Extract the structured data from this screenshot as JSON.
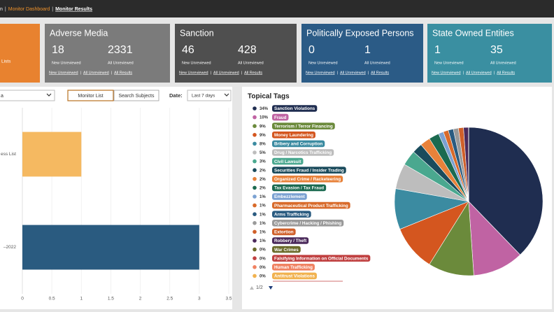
{
  "nav": {
    "items": [
      "n",
      "Monitor Dashboard",
      "Monitor Results"
    ],
    "separator": "|"
  },
  "partial_card": {
    "text": "Lists",
    "color": "#e8822f"
  },
  "link_separator": "|",
  "cards": [
    {
      "title": "Adverse Media",
      "new": 18,
      "all": 2331,
      "new_label": "New Unreviewed",
      "all_label": "All Unreviewed",
      "links": [
        "New Unreviewed",
        "All Unreviewed",
        "All Results"
      ],
      "color": "#7b7b7b"
    },
    {
      "title": "Sanction",
      "new": 46,
      "all": 428,
      "new_label": "New Unreviewed",
      "all_label": "All Unreviewed",
      "links": [
        "New Unreviewed",
        "All Unreviewed",
        "All Results"
      ],
      "color": "#4f4f4f"
    },
    {
      "title": "Politically Exposed Persons",
      "new": 0,
      "all": 1,
      "new_label": "New Unreviewed",
      "all_label": "All Unreviewed",
      "links": [
        "New Unreviewed",
        "All Unreviewed",
        "All Results"
      ],
      "color": "#2b5b86"
    },
    {
      "title": "State Owned Entities",
      "new": 1,
      "all": 35,
      "new_label": "New Unreviewed",
      "all_label": "All Unreviewed",
      "links": [
        "New Unreviewed",
        "All Unreviewed",
        "All Results"
      ],
      "color": "#3a8fa1"
    }
  ],
  "monitor_panel": {
    "select": "a",
    "buttons": [
      "Monitor List",
      "Search Subjects"
    ],
    "date_label": "Date:",
    "date_value": "Last 7 days"
  },
  "tags_panel": {
    "pagination": "1/2"
  },
  "chart_data": [
    {
      "type": "hbar",
      "categories": [
        "ess List",
        "–2022"
      ],
      "values": [
        1,
        3
      ],
      "colors": [
        "#f5b961",
        "#2a5b80"
      ],
      "xlim": [
        0,
        3.5
      ],
      "xticks": [
        0,
        0.5,
        1,
        1.5,
        2,
        2.5,
        3,
        3.5
      ],
      "grid": true
    },
    {
      "type": "pie",
      "title": "Topical Tags",
      "categories": [
        "Sanction Violations",
        "Fraud",
        "Terrorism / Terror Financing",
        "Money Laundering",
        "Bribery and Corruption",
        "Drug / Narcotics Trafficking",
        "Civil Lawsuit",
        "Securities Fraud / Insider Trading",
        "Organized Crime / Racketeering",
        "Tax Evasion / Tax Fraud",
        "Embezzlement",
        "Pharmaceutical Product Trafficking",
        "Arms Trafficking",
        "Cybercrime / Hacking / Phishing",
        "Extortion",
        "Robbery / Theft",
        "War Crimes",
        "Falsifying Information on Official Documents",
        "Human Trafficking",
        "Antitrust Violations"
      ],
      "values": [
        34,
        10,
        9,
        9,
        8,
        5,
        3,
        2,
        2,
        2,
        1,
        1,
        1,
        1,
        1,
        1,
        0,
        0,
        0,
        0
      ],
      "value_labels": [
        "34%",
        "10%",
        "9%",
        "9%",
        "8%",
        "5%",
        "3%",
        "2%",
        "2%",
        "2%",
        "1%",
        "1%",
        "1%",
        "1%",
        "1%",
        "1%",
        "0%",
        "0%",
        "0%",
        "0%"
      ],
      "colors": [
        "#1f2d50",
        "#c063a3",
        "#6b8a3b",
        "#d4561f",
        "#3b8ba1",
        "#bdbdbd",
        "#4aa88f",
        "#1a4b5c",
        "#e8823a",
        "#1b6a50",
        "#7ba1d2",
        "#d86a2a",
        "#2a5b80",
        "#9a9a9a",
        "#d0602a",
        "#4b2a5b",
        "#6b6b2b",
        "#c04040",
        "#f08262",
        "#f1b24f"
      ]
    }
  ]
}
